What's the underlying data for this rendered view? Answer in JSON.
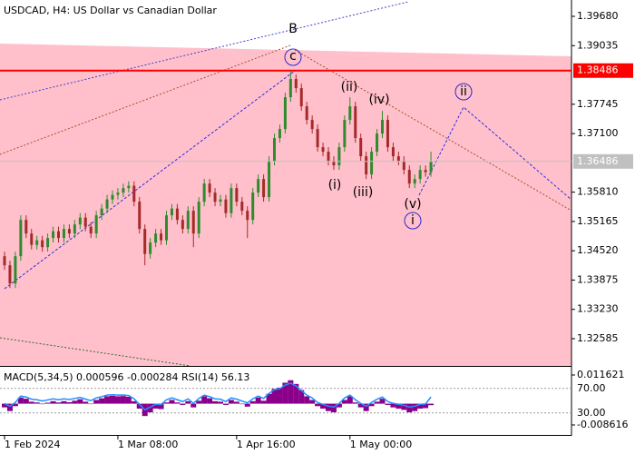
{
  "chart_data": [
    {
      "type": "candlestick",
      "title": "USDCAD, H4:  US Dollar vs Canadian Dollar",
      "up_color": "#2e8b2e",
      "down_color": "#a52a2a",
      "ylim": [
        1.31985,
        1.4004
      ],
      "yticks": [
        {
          "value": 1.3968,
          "label": "1.39680"
        },
        1.39035,
        1.37745,
        {
          "value": 1.371,
          "label": "1.37100"
        },
        {
          "value": 1.3581,
          "label": "1.35810"
        },
        1.35165,
        {
          "value": 1.3452,
          "label": "1.34520"
        },
        1.33875,
        {
          "value": 1.3323,
          "label": "1.33230"
        },
        1.32585
      ],
      "levels": [
        {
          "value": 1.38486,
          "label": "1.38486",
          "color": "#ff0000"
        },
        {
          "value": 1.36486,
          "label": "1.36486",
          "color": "#c0c0c0"
        }
      ],
      "annotations": [
        "B",
        "c",
        "(ii)",
        "(iv)",
        "(i)",
        "(iii)",
        "(v)",
        "i",
        "ii"
      ],
      "categories": [
        "1 Feb 2024",
        null,
        null,
        null,
        null,
        null,
        null,
        null,
        null,
        null,
        null,
        null,
        null,
        null,
        null,
        null,
        null,
        null,
        null,
        null,
        null,
        "1 Mar 08:00",
        null,
        null,
        null,
        null,
        null,
        null,
        null,
        null,
        null,
        null,
        null,
        null,
        null,
        null,
        null,
        null,
        null,
        null,
        null,
        null,
        null,
        "1 Apr 16:00",
        null,
        null,
        null,
        null,
        null,
        null,
        null,
        null,
        null,
        null,
        null,
        null,
        null,
        null,
        null,
        null,
        null,
        null,
        null,
        null,
        "1 May 00:00",
        null,
        null,
        null,
        null,
        null,
        null,
        null,
        null,
        null,
        null,
        null,
        null,
        null,
        null,
        null
      ],
      "candles": [
        [
          1.344,
          1.345,
          1.341,
          1.342
        ],
        [
          1.342,
          1.343,
          1.337,
          1.338
        ],
        [
          1.338,
          1.345,
          1.337,
          1.344
        ],
        [
          1.344,
          1.353,
          1.343,
          1.352
        ],
        [
          1.352,
          1.353,
          1.348,
          1.349
        ],
        [
          1.349,
          1.35,
          1.3455,
          1.3465
        ],
        [
          1.3465,
          1.3485,
          1.3455,
          1.3475
        ],
        [
          1.3475,
          1.3485,
          1.345,
          1.346
        ],
        [
          1.346,
          1.349,
          1.345,
          1.348
        ],
        [
          1.348,
          1.3505,
          1.347,
          1.3495
        ],
        [
          1.3495,
          1.3505,
          1.347,
          1.348
        ],
        [
          1.348,
          1.351,
          1.347,
          1.35
        ],
        [
          1.35,
          1.351,
          1.348,
          1.349
        ],
        [
          1.349,
          1.352,
          1.348,
          1.351
        ],
        [
          1.351,
          1.3535,
          1.35,
          1.3525
        ],
        [
          1.3525,
          1.3535,
          1.3495,
          1.3505
        ],
        [
          1.3505,
          1.3515,
          1.348,
          1.349
        ],
        [
          1.349,
          1.354,
          1.348,
          1.353
        ],
        [
          1.353,
          1.3555,
          1.352,
          1.3545
        ],
        [
          1.3545,
          1.3575,
          1.3535,
          1.3565
        ],
        [
          1.3565,
          1.3585,
          1.3555,
          1.3575
        ],
        [
          1.3575,
          1.359,
          1.3565,
          1.358
        ],
        [
          1.358,
          1.36,
          1.357,
          1.359
        ],
        [
          1.359,
          1.3605,
          1.358,
          1.3595
        ],
        [
          1.3595,
          1.3605,
          1.355,
          1.356
        ],
        [
          1.356,
          1.357,
          1.349,
          1.35
        ],
        [
          1.35,
          1.351,
          1.342,
          1.3445
        ],
        [
          1.3445,
          1.348,
          1.3435,
          1.347
        ],
        [
          1.347,
          1.35,
          1.346,
          1.349
        ],
        [
          1.349,
          1.35,
          1.3465,
          1.3475
        ],
        [
          1.3475,
          1.354,
          1.3465,
          1.353
        ],
        [
          1.353,
          1.3555,
          1.352,
          1.3545
        ],
        [
          1.3545,
          1.3555,
          1.351,
          1.352
        ],
        [
          1.352,
          1.353,
          1.349,
          1.35
        ],
        [
          1.35,
          1.355,
          1.349,
          1.354
        ],
        [
          1.354,
          1.355,
          1.346,
          1.349
        ],
        [
          1.349,
          1.357,
          1.348,
          1.356
        ],
        [
          1.356,
          1.361,
          1.355,
          1.36
        ],
        [
          1.36,
          1.361,
          1.357,
          1.358
        ],
        [
          1.358,
          1.359,
          1.355,
          1.356
        ],
        [
          1.356,
          1.3575,
          1.355,
          1.3565
        ],
        [
          1.3565,
          1.3575,
          1.3525,
          1.3535
        ],
        [
          1.3535,
          1.36,
          1.3525,
          1.359
        ],
        [
          1.359,
          1.36,
          1.355,
          1.356
        ],
        [
          1.356,
          1.357,
          1.353,
          1.354
        ],
        [
          1.354,
          1.355,
          1.348,
          1.352
        ],
        [
          1.352,
          1.359,
          1.351,
          1.358
        ],
        [
          1.358,
          1.362,
          1.357,
          1.361
        ],
        [
          1.361,
          1.362,
          1.356,
          1.357
        ],
        [
          1.357,
          1.366,
          1.356,
          1.365
        ],
        [
          1.365,
          1.371,
          1.364,
          1.37
        ],
        [
          1.37,
          1.373,
          1.369,
          1.372
        ],
        [
          1.372,
          1.38,
          1.371,
          1.379
        ],
        [
          1.379,
          1.385,
          1.378,
          1.383
        ],
        [
          1.383,
          1.384,
          1.38,
          1.381
        ],
        [
          1.381,
          1.382,
          1.376,
          1.377
        ],
        [
          1.377,
          1.378,
          1.373,
          1.374
        ],
        [
          1.374,
          1.375,
          1.371,
          1.372
        ],
        [
          1.372,
          1.373,
          1.367,
          1.368
        ],
        [
          1.368,
          1.369,
          1.366,
          1.367
        ],
        [
          1.367,
          1.368,
          1.364,
          1.365
        ],
        [
          1.365,
          1.366,
          1.363,
          1.364
        ],
        [
          1.364,
          1.369,
          1.363,
          1.368
        ],
        [
          1.368,
          1.375,
          1.367,
          1.374
        ],
        [
          1.374,
          1.379,
          1.373,
          1.377
        ],
        [
          1.377,
          1.378,
          1.369,
          1.37
        ],
        [
          1.37,
          1.371,
          1.365,
          1.366
        ],
        [
          1.366,
          1.367,
          1.361,
          1.362
        ],
        [
          1.362,
          1.368,
          1.361,
          1.367
        ],
        [
          1.367,
          1.372,
          1.366,
          1.371
        ],
        [
          1.371,
          1.376,
          1.37,
          1.374
        ],
        [
          1.374,
          1.375,
          1.367,
          1.368
        ],
        [
          1.368,
          1.369,
          1.365,
          1.366
        ],
        [
          1.366,
          1.367,
          1.364,
          1.365
        ],
        [
          1.365,
          1.366,
          1.362,
          1.363
        ],
        [
          1.363,
          1.364,
          1.359,
          1.36
        ],
        [
          1.36,
          1.362,
          1.359,
          1.361
        ],
        [
          1.361,
          1.364,
          1.36,
          1.363
        ],
        [
          1.363,
          1.364,
          1.3615,
          1.3625
        ],
        [
          1.3625,
          1.367,
          1.3615,
          1.36486
        ]
      ]
    },
    {
      "type": "macd_rsi",
      "label": "MACD(5,34,5) 0.000596 -0.000284 RSI(14) 56.13",
      "ylim": [
        -0.008616,
        0.011621
      ],
      "yticks": [
        0.011621,
        -0.008616
      ],
      "y2lim": [
        0,
        100
      ],
      "y2ticks": [
        {
          "value": 70,
          "label": "70.00"
        },
        {
          "value": 30,
          "label": "30.00"
        }
      ],
      "histogram": {
        "color": "#8b008b",
        "values": [
          -0.0015,
          -0.003,
          -0.001,
          0.0025,
          0.002,
          0.0008,
          0.0005,
          -0.0002,
          0.0004,
          0.001,
          0.0005,
          0.001,
          0.0006,
          0.0012,
          0.0018,
          0.0008,
          0.0,
          0.0015,
          0.0022,
          0.003,
          0.0032,
          0.003,
          0.0031,
          0.0028,
          0.001,
          -0.002,
          -0.005,
          -0.0035,
          -0.002,
          -0.0022,
          0.0005,
          0.0015,
          0.0005,
          -0.0005,
          0.001,
          -0.0015,
          0.0012,
          0.003,
          0.0022,
          0.001,
          0.0008,
          -0.0005,
          0.0015,
          0.0008,
          -0.0002,
          -0.0012,
          0.001,
          0.0025,
          0.0012,
          0.004,
          0.006,
          0.0065,
          0.0085,
          0.0095,
          0.008,
          0.0055,
          0.003,
          0.0015,
          -0.001,
          -0.002,
          -0.003,
          -0.0035,
          -0.0015,
          0.0015,
          0.003,
          0.0005,
          -0.0015,
          -0.003,
          -0.001,
          0.0008,
          0.002,
          -0.0005,
          -0.0015,
          -0.002,
          -0.0025,
          -0.0035,
          -0.003,
          -0.002,
          -0.0018,
          -0.0006
        ]
      },
      "line": {
        "color": "#1e90ff",
        "axis": "y2",
        "values": [
          45.5,
          41,
          47,
          57.5,
          56,
          52.4,
          51.5,
          49.4,
          51.2,
          53,
          51.5,
          53,
          51.8,
          53.6,
          55.4,
          52.4,
          50,
          54.5,
          56.6,
          59,
          59.6,
          59,
          59.3,
          58.4,
          53,
          44,
          35,
          39.5,
          44,
          43.4,
          51.5,
          54.5,
          51.5,
          48.5,
          53,
          45.5,
          53.6,
          59,
          56.6,
          53,
          52.4,
          48.5,
          54.5,
          52.4,
          49.4,
          46.4,
          53,
          57.5,
          53.6,
          62,
          68,
          69.5,
          75.5,
          78.5,
          74,
          66.5,
          59,
          54.5,
          47,
          44,
          41,
          39.5,
          45.5,
          54.5,
          59,
          51.5,
          45.5,
          41,
          47,
          52.4,
          56,
          48.5,
          45.5,
          44,
          42.5,
          39.5,
          41,
          44,
          44.6,
          56.13
        ]
      }
    }
  ]
}
